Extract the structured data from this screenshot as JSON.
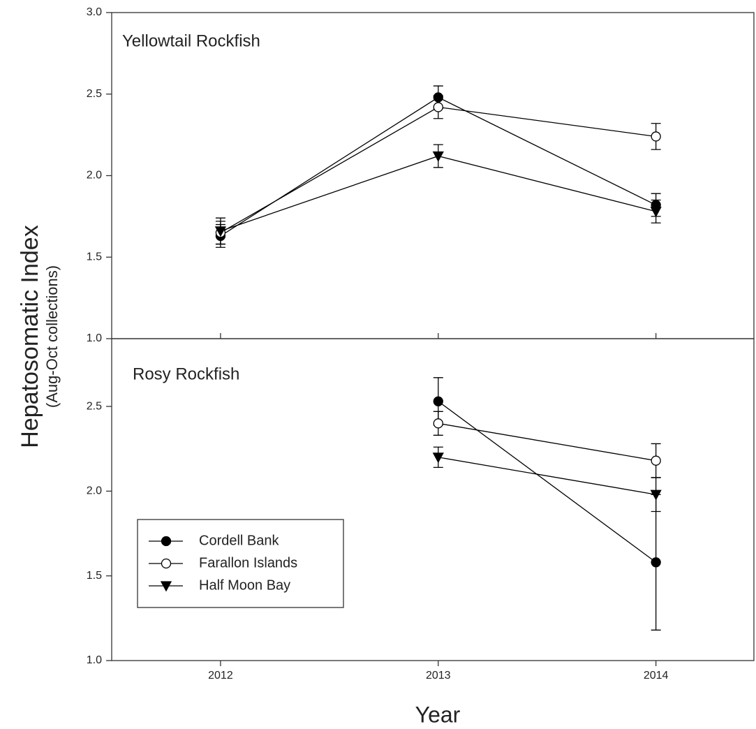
{
  "chart_data": [
    {
      "type": "line",
      "title": "Yellowtail Rockfish",
      "y_label": "Hepatosomatic Index",
      "y_sublabel": "(Aug-Oct collections)",
      "x": [
        2012,
        2013,
        2014
      ],
      "xlim": [
        2011.5,
        2014.45
      ],
      "xticks": [
        2012,
        2013,
        2014
      ],
      "ylim": [
        1.0,
        3.0
      ],
      "yticks": [
        {
          "value": 1.0,
          "label": "1.0"
        },
        {
          "value": 1.5,
          "label": "1.5"
        },
        {
          "value": 2.0,
          "label": "2.0"
        },
        {
          "value": 2.5,
          "label": "2.5"
        },
        {
          "value": 3.0,
          "label": "3.0"
        }
      ],
      "legend": false,
      "series": [
        {
          "name": "Cordell Bank",
          "color": "#000000",
          "fill": "#000000",
          "marker": "circle",
          "values": [
            1.63,
            2.48,
            1.82
          ],
          "errors": [
            0.07,
            0.07,
            0.07
          ]
        },
        {
          "name": "Farallon Islands",
          "color": "#000000",
          "fill": "#ffffff",
          "marker": "circle",
          "values": [
            1.65,
            2.42,
            2.24
          ],
          "errors": [
            0.07,
            0.07,
            0.08
          ]
        },
        {
          "name": "Half Moon Bay",
          "color": "#000000",
          "fill": "#000000",
          "marker": "triangle-down",
          "values": [
            1.66,
            2.12,
            1.78
          ],
          "errors": [
            0.08,
            0.07,
            0.07
          ]
        }
      ]
    },
    {
      "type": "line",
      "title": "Rosy Rockfish",
      "x_label": "Year",
      "x": [
        2012,
        2013,
        2014
      ],
      "xlim": [
        2011.5,
        2014.45
      ],
      "xticks": [
        2012,
        2013,
        2014
      ],
      "ylim": [
        1.0,
        2.9
      ],
      "yticks": [
        {
          "value": 1.0,
          "label": "1.0"
        },
        {
          "value": 1.5,
          "label": "1.5"
        },
        {
          "value": 2.0,
          "label": "2.0"
        },
        {
          "value": 2.5,
          "label": "2.5"
        }
      ],
      "legend": "lower left",
      "series": [
        {
          "name": "Cordell Bank",
          "color": "#000000",
          "fill": "#000000",
          "marker": "circle",
          "values": [
            null,
            2.53,
            1.58
          ],
          "errors": [
            null,
            0.14,
            0.4
          ]
        },
        {
          "name": "Farallon Islands",
          "color": "#000000",
          "fill": "#ffffff",
          "marker": "circle",
          "values": [
            null,
            2.4,
            2.18
          ],
          "errors": [
            null,
            0.07,
            0.1
          ]
        },
        {
          "name": "Half Moon Bay",
          "color": "#000000",
          "fill": "#000000",
          "marker": "triangle-down",
          "values": [
            null,
            2.2,
            1.98
          ],
          "errors": [
            null,
            0.06,
            0.1
          ]
        }
      ]
    }
  ]
}
